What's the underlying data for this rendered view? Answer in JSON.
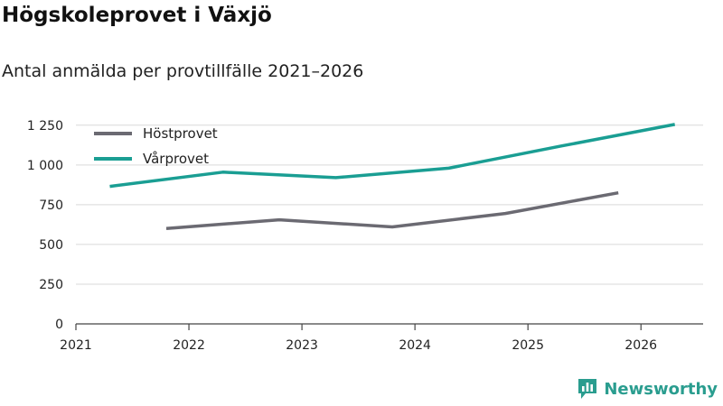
{
  "header": {
    "title": "Högskoleprovet i Växjö",
    "subtitle": "Antal anmälda per provtillfälle 2021–2026"
  },
  "brand": {
    "name": "Newsworthy",
    "icon": "bar-chart-icon",
    "color": "#2a9d8f"
  },
  "chart_data": {
    "type": "line",
    "title": "Högskoleprovet i Växjö",
    "subtitle": "Antal anmälda per provtillfälle 2021–2026",
    "xlabel": "",
    "ylabel": "",
    "x_ticks": [
      "2021",
      "2022",
      "2023",
      "2024",
      "2025",
      "2026"
    ],
    "y_ticks": [
      "0",
      "250",
      "500",
      "750",
      "1 000",
      "1 250"
    ],
    "xlim": [
      2021.0,
      2026.55
    ],
    "ylim": [
      0,
      1300
    ],
    "grid": true,
    "legend_position": "top-left",
    "series": [
      {
        "name": "Höstprovet",
        "color": "#6b6a72",
        "points": [
          {
            "x": 2021.8,
            "y": 600
          },
          {
            "x": 2022.8,
            "y": 655
          },
          {
            "x": 2023.8,
            "y": 610
          },
          {
            "x": 2024.8,
            "y": 695
          },
          {
            "x": 2025.8,
            "y": 825
          }
        ]
      },
      {
        "name": "Vårprovet",
        "color": "#1a9e93",
        "points": [
          {
            "x": 2021.3,
            "y": 865
          },
          {
            "x": 2022.3,
            "y": 955
          },
          {
            "x": 2023.3,
            "y": 920
          },
          {
            "x": 2024.3,
            "y": 980
          },
          {
            "x": 2025.3,
            "y": 1120
          },
          {
            "x": 2026.3,
            "y": 1255
          }
        ]
      }
    ]
  }
}
